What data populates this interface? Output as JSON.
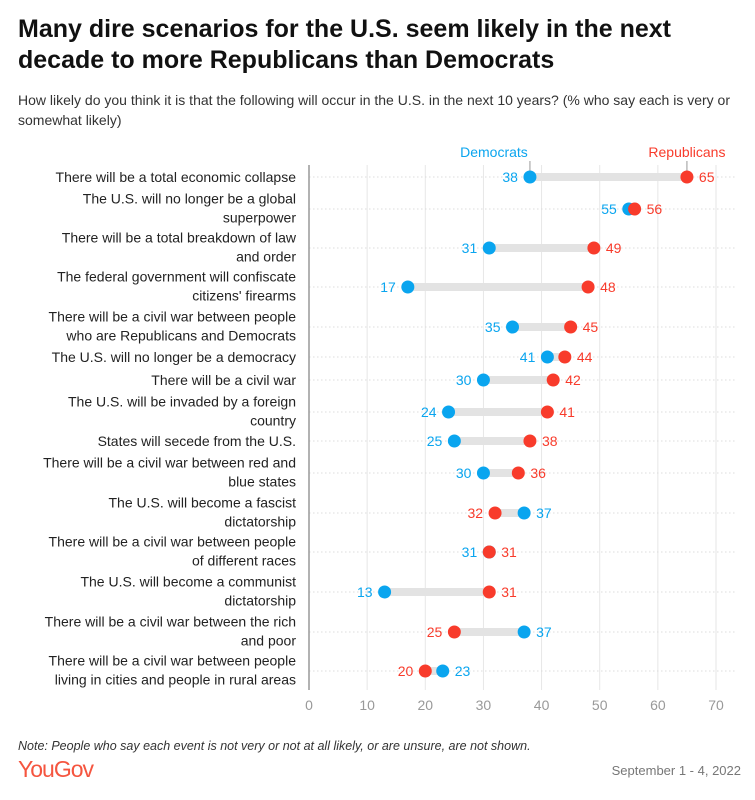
{
  "title": "Many dire scenarios for the U.S. seem likely in the next decade to more Republicans than Democrats",
  "subtitle": "How likely do you think it is that the following will occur in the U.S. in the next 10 years? (% who say each is very or somewhat likely)",
  "note": "Note: People who say each event is not very or not at all likely, or are unsure, are not shown.",
  "logo": "YouGov",
  "date": "September 1 - 4, 2022",
  "colors": {
    "democrats": "#0aa5ef",
    "republicans": "#f83b2b",
    "connector": "#e3e3e3"
  },
  "chart_data": {
    "type": "dumbbell",
    "xlim": [
      0,
      70
    ],
    "xticks": [
      "0",
      "10",
      "20",
      "30",
      "40",
      "50",
      "60",
      "70"
    ],
    "grid": true,
    "legend_placement": "top (labels above first row)",
    "series": [
      {
        "name": "Democrats",
        "values": [
          38,
          55,
          31,
          17,
          35,
          41,
          30,
          24,
          25,
          30,
          37,
          31,
          13,
          37,
          23
        ]
      },
      {
        "name": "Republicans",
        "values": [
          65,
          56,
          49,
          48,
          45,
          44,
          42,
          41,
          38,
          36,
          32,
          31,
          31,
          25,
          20
        ]
      }
    ],
    "categories": [
      [
        "There will be a total economic collapse"
      ],
      [
        "The U.S. will no longer be a global",
        "superpower"
      ],
      [
        "There will be a total breakdown of law",
        "and order"
      ],
      [
        "The federal government will confiscate",
        "citizens' firearms"
      ],
      [
        "There will be a civil war between people",
        "who are Republicans and Democrats"
      ],
      [
        "The U.S. will no longer be a democracy"
      ],
      [
        "There will be a civil war"
      ],
      [
        "The U.S. will be invaded by a foreign",
        "country"
      ],
      [
        "States will secede from the U.S."
      ],
      [
        "There will be a civil war between red and",
        "blue states"
      ],
      [
        "The U.S. will become a fascist",
        "dictatorship"
      ],
      [
        "There will be a civil war between people",
        "of different races"
      ],
      [
        "The U.S. will become a communist",
        "dictatorship"
      ],
      [
        "There will be a civil war between the rich",
        "and poor"
      ],
      [
        "There will be a civil war between people",
        "living in cities and people in rural areas"
      ]
    ]
  }
}
